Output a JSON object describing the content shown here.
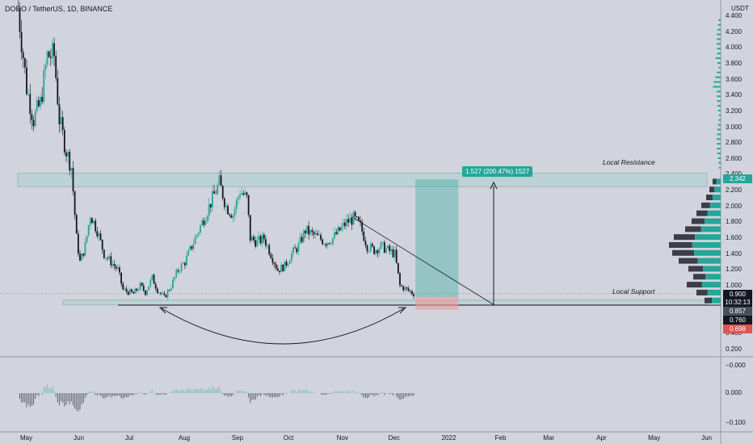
{
  "header": {
    "title": "DODO / TetherUS, 1D, BINANCE"
  },
  "price_axis": {
    "unit": "USDT",
    "ticks": [
      "4.400",
      "4.200",
      "4.000",
      "3.800",
      "3.600",
      "3.400",
      "3.200",
      "3.000",
      "2.800",
      "2.600",
      "2.400",
      "2.200",
      "2.000",
      "1.800",
      "1.600",
      "1.400",
      "1.200",
      "1.000",
      "0.400",
      "0.200"
    ]
  },
  "indicator_axis": {
    "ticks": [
      "0.000",
      "−0.100"
    ],
    "top_label": "−0.000"
  },
  "time_axis": {
    "labels": [
      "May",
      "Jun",
      "Jul",
      "Aug",
      "Sep",
      "Oct",
      "Nov",
      "Dec",
      "2022",
      "Feb",
      "Mar",
      "Apr",
      "May",
      "Jun"
    ]
  },
  "annotations": {
    "resistance": "Local Resistance",
    "support": "Local Support",
    "projection": "1.527 (200.47%) 1527"
  },
  "price_tags": [
    {
      "text": "2.342",
      "bg": "#26a69a",
      "fg": "#ffffff"
    },
    {
      "text": "0.900",
      "bg": "#131722",
      "fg": "#ffffff"
    },
    {
      "text": "10:32:13",
      "bg": "#131722",
      "fg": "#ffffff"
    },
    {
      "text": "0.857",
      "bg": "#4a4e58",
      "fg": "#ffffff"
    },
    {
      "text": "0.760",
      "bg": "#131722",
      "fg": "#ffffff"
    },
    {
      "text": "0.698",
      "bg": "#e05353",
      "fg": "#ffffff"
    }
  ],
  "colors": {
    "background": "#d1d4dc",
    "up": "#26a69a",
    "down": "#131722",
    "target_zone": "#26a69a",
    "stop_zone": "#ef9a9a",
    "zone_band": "#b4d2d2"
  },
  "chart_data": {
    "type": "candlestick",
    "symbol": "DODO / TetherUS",
    "interval": "1D",
    "exchange": "BINANCE",
    "y_unit": "USDT",
    "ylim": [
      0.1,
      4.6
    ],
    "resistance_zone": [
      2.25,
      2.42
    ],
    "support_zone": [
      0.76,
      0.82
    ],
    "trade": {
      "entry": 0.857,
      "target": 2.342,
      "stop": 0.698,
      "change": "1.527 (200.47%) 1527"
    },
    "close_series": [
      {
        "date": "2021-04-26",
        "close": 4.5
      },
      {
        "date": "2021-05-01",
        "close": 3.5
      },
      {
        "date": "2021-05-05",
        "close": 3.1
      },
      {
        "date": "2021-05-09",
        "close": 3.3
      },
      {
        "date": "2021-05-13",
        "close": 3.9
      },
      {
        "date": "2021-05-17",
        "close": 3.9
      },
      {
        "date": "2021-05-20",
        "close": 3.1
      },
      {
        "date": "2021-05-24",
        "close": 2.7
      },
      {
        "date": "2021-05-27",
        "close": 2.5
      },
      {
        "date": "2021-05-30",
        "close": 1.6
      },
      {
        "date": "2021-06-01",
        "close": 1.3
      },
      {
        "date": "2021-06-04",
        "close": 1.5
      },
      {
        "date": "2021-06-07",
        "close": 1.9
      },
      {
        "date": "2021-06-11",
        "close": 1.7
      },
      {
        "date": "2021-06-15",
        "close": 1.4
      },
      {
        "date": "2021-06-19",
        "close": 1.3
      },
      {
        "date": "2021-06-23",
        "close": 1.2
      },
      {
        "date": "2021-06-26",
        "close": 0.95
      },
      {
        "date": "2021-07-02",
        "close": 0.9
      },
      {
        "date": "2021-07-06",
        "close": 1.0
      },
      {
        "date": "2021-07-09",
        "close": 0.92
      },
      {
        "date": "2021-07-13",
        "close": 1.1
      },
      {
        "date": "2021-07-16",
        "close": 0.95
      },
      {
        "date": "2021-07-20",
        "close": 0.85
      },
      {
        "date": "2021-07-24",
        "close": 1.0
      },
      {
        "date": "2021-07-28",
        "close": 1.2
      },
      {
        "date": "2021-08-01",
        "close": 1.3
      },
      {
        "date": "2021-08-05",
        "close": 1.5
      },
      {
        "date": "2021-08-09",
        "close": 1.7
      },
      {
        "date": "2021-08-13",
        "close": 1.9
      },
      {
        "date": "2021-08-17",
        "close": 2.1
      },
      {
        "date": "2021-08-21",
        "close": 2.3
      },
      {
        "date": "2021-08-25",
        "close": 2.0
      },
      {
        "date": "2021-08-29",
        "close": 1.9
      },
      {
        "date": "2021-09-02",
        "close": 2.2
      },
      {
        "date": "2021-09-06",
        "close": 2.1
      },
      {
        "date": "2021-09-08",
        "close": 1.6
      },
      {
        "date": "2021-09-12",
        "close": 1.55
      },
      {
        "date": "2021-09-16",
        "close": 1.6
      },
      {
        "date": "2021-09-20",
        "close": 1.4
      },
      {
        "date": "2021-09-24",
        "close": 1.2
      },
      {
        "date": "2021-09-28",
        "close": 1.25
      },
      {
        "date": "2021-10-02",
        "close": 1.4
      },
      {
        "date": "2021-10-06",
        "close": 1.5
      },
      {
        "date": "2021-10-10",
        "close": 1.7
      },
      {
        "date": "2021-10-14",
        "close": 1.65
      },
      {
        "date": "2021-10-18",
        "close": 1.6
      },
      {
        "date": "2021-10-22",
        "close": 1.55
      },
      {
        "date": "2021-10-26",
        "close": 1.6
      },
      {
        "date": "2021-10-30",
        "close": 1.7
      },
      {
        "date": "2021-11-03",
        "close": 1.8
      },
      {
        "date": "2021-11-07",
        "close": 1.85
      },
      {
        "date": "2021-11-11",
        "close": 1.75
      },
      {
        "date": "2021-11-15",
        "close": 1.5
      },
      {
        "date": "2021-11-19",
        "close": 1.45
      },
      {
        "date": "2021-11-23",
        "close": 1.5
      },
      {
        "date": "2021-11-27",
        "close": 1.45
      },
      {
        "date": "2021-12-01",
        "close": 1.4
      },
      {
        "date": "2021-12-04",
        "close": 1.0
      },
      {
        "date": "2021-12-08",
        "close": 0.95
      },
      {
        "date": "2021-12-12",
        "close": 0.9
      }
    ]
  }
}
